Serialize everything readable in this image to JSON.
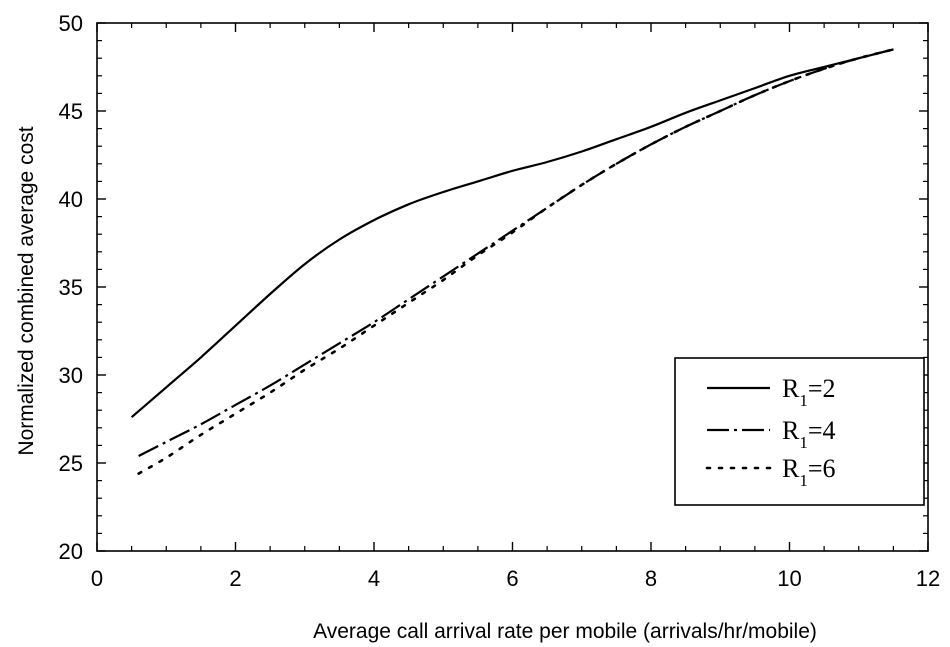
{
  "chart_data": {
    "type": "line",
    "xlabel": "Average call arrival rate per mobile (arrivals/hr/mobile)",
    "ylabel": "Normalized combined average cost",
    "xlim": [
      0,
      12
    ],
    "ylim": [
      20,
      50
    ],
    "x_ticks": [
      0,
      2,
      4,
      6,
      8,
      10,
      12
    ],
    "y_ticks": [
      20,
      25,
      30,
      35,
      40,
      45,
      50
    ],
    "grid": false,
    "legend_position": "lower-right",
    "series": [
      {
        "name": "R1=2",
        "label_main": "R",
        "label_sub": "1",
        "label_rest": "=2",
        "dash": "solid",
        "x": [
          0.5,
          1,
          1.5,
          2,
          2.5,
          3,
          3.5,
          4,
          4.5,
          5,
          5.5,
          6,
          6.5,
          7,
          7.5,
          8,
          8.5,
          9,
          9.5,
          10,
          10.5,
          11,
          11.5
        ],
        "y": [
          27.6,
          29.3,
          31.0,
          32.8,
          34.6,
          36.3,
          37.7,
          38.8,
          39.7,
          40.4,
          41.0,
          41.6,
          42.1,
          42.7,
          43.4,
          44.1,
          44.9,
          45.6,
          46.3,
          47.0,
          47.5,
          48.0,
          48.5
        ]
      },
      {
        "name": "R1=4",
        "label_main": "R",
        "label_sub": "1",
        "label_rest": "=4",
        "dash": "dashdot",
        "x": [
          0.6,
          1,
          1.5,
          2,
          2.5,
          3,
          3.5,
          4,
          4.5,
          5,
          5.5,
          6,
          6.5,
          7,
          7.5,
          8,
          8.5,
          9,
          9.5,
          10,
          10.5,
          11,
          11.5
        ],
        "y": [
          25.4,
          26.2,
          27.2,
          28.3,
          29.4,
          30.6,
          31.8,
          33.0,
          34.3,
          35.6,
          36.9,
          38.2,
          39.5,
          40.8,
          42.0,
          43.1,
          44.1,
          45.0,
          45.9,
          46.7,
          47.4,
          48.0,
          48.5
        ]
      },
      {
        "name": "R1=6",
        "label_main": "R",
        "label_sub": "1",
        "label_rest": "=6",
        "dash": "dotted",
        "x": [
          0.6,
          1,
          1.5,
          2,
          2.5,
          3,
          3.5,
          4,
          4.5,
          5,
          5.5,
          6,
          6.5,
          7,
          7.5,
          8,
          8.5,
          9,
          9.5,
          10,
          10.5,
          11,
          11.5
        ],
        "y": [
          24.4,
          25.3,
          26.6,
          27.8,
          29.0,
          30.3,
          31.5,
          32.8,
          34.1,
          35.4,
          36.8,
          38.1,
          39.5,
          40.8,
          42.0,
          43.1,
          44.1,
          45.0,
          45.9,
          46.7,
          47.4,
          48.0,
          48.5
        ]
      }
    ]
  }
}
